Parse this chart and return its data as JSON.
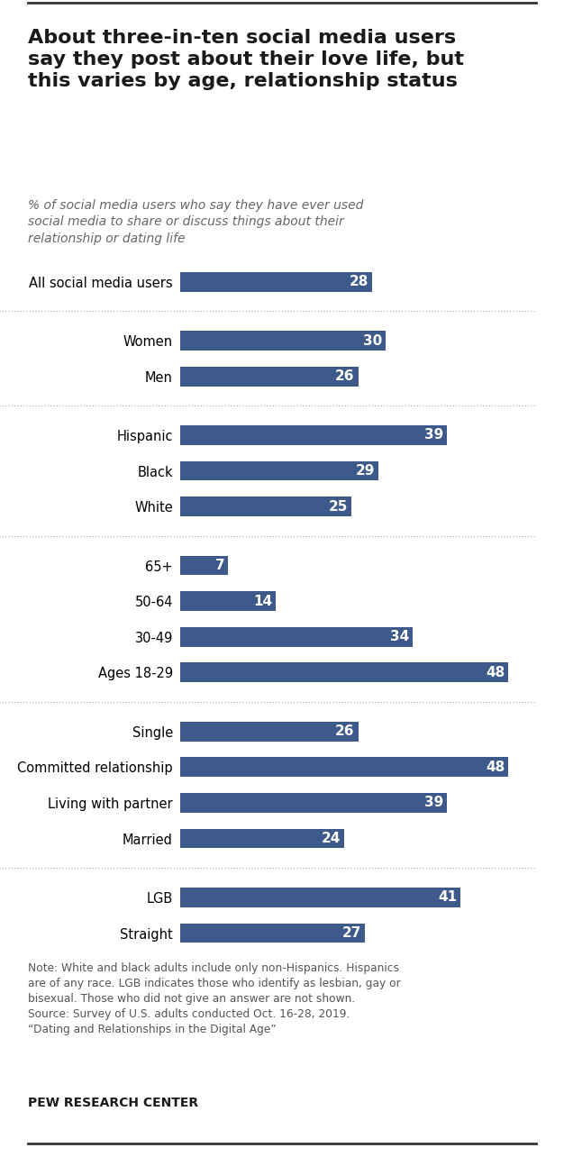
{
  "title": "About three-in-ten social media users\nsay they post about their love life, but\nthis varies by age, relationship status",
  "subtitle": "% of social media users who say they have ever used\nsocial media to share or discuss things about their\nrelationship or dating life",
  "bar_color": "#3d5a8a",
  "text_color_on_bar": "#ffffff",
  "categories": [
    "All social media users",
    "Men",
    "Women",
    "White",
    "Black",
    "Hispanic",
    "Ages 18-29",
    "30-49",
    "50-64",
    "65+",
    "Married",
    "Living with partner",
    "Committed relationship",
    "Single",
    "Straight",
    "LGB"
  ],
  "values": [
    28,
    26,
    30,
    25,
    29,
    39,
    48,
    34,
    14,
    7,
    24,
    39,
    48,
    26,
    27,
    41
  ],
  "group_defs": [
    [
      0
    ],
    [
      1,
      2
    ],
    [
      3,
      4,
      5
    ],
    [
      6,
      7,
      8,
      9
    ],
    [
      10,
      11,
      12,
      13
    ],
    [
      14,
      15
    ]
  ],
  "note_line1": "Note: White and black adults include only non-Hispanics. Hispanics",
  "note_line2": "are of any race. LGB indicates those who identify as lesbian, gay or",
  "note_line3": "bisexual. Those who did not give an answer are not shown.",
  "note_line4": "Source: Survey of U.S. adults conducted Oct. 16-28, 2019.",
  "note_line5": "“Dating and Relationships in the Digital Age”",
  "footer": "PEW RESEARCH CENTER",
  "bg_color": "#ffffff",
  "separator_color": "#aaaaaa",
  "max_value": 52
}
